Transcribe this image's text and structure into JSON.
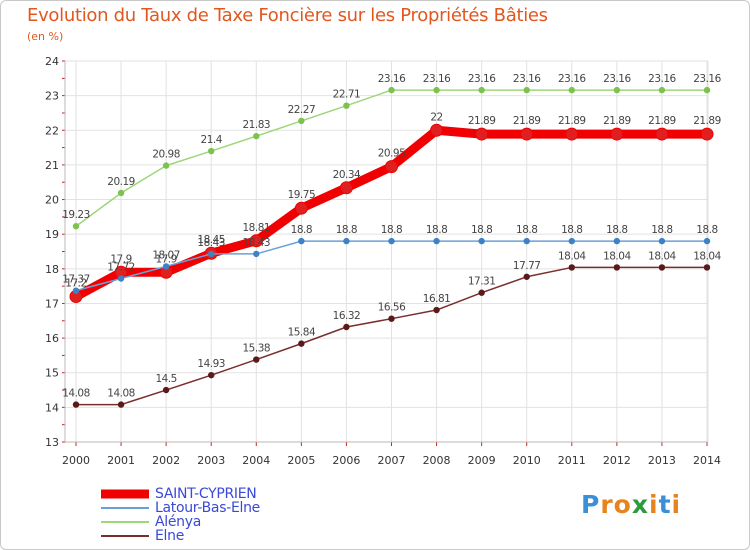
{
  "title": "Evolution du Taux de Taxe Foncière sur les Propriétés Bâties",
  "subtitle": "(en %)",
  "chart_data": {
    "type": "line",
    "title": "Evolution du Taux de Taxe Foncière sur les Propriétés Bâties",
    "ylabel": "(en %)",
    "xlabel": "",
    "ylim": [
      13,
      24
    ],
    "yticks": [
      13,
      14,
      15,
      16,
      17,
      18,
      19,
      20,
      21,
      22,
      23,
      24
    ],
    "categories": [
      "2000",
      "2001",
      "2002",
      "2003",
      "2004",
      "2005",
      "2006",
      "2007",
      "2008",
      "2009",
      "2010",
      "2011",
      "2012",
      "2013",
      "2014"
    ],
    "series": [
      {
        "name": "SAINT-CYPRIEN",
        "color": "#f00000",
        "marker": "#e02020",
        "values": [
          17.2,
          17.9,
          17.9,
          18.45,
          18.81,
          19.75,
          20.34,
          20.95,
          22,
          21.89,
          21.89,
          21.89,
          21.89,
          21.89,
          21.89
        ],
        "labels": [
          "17.2",
          "17.9",
          "17.9",
          "18.45",
          "18.81",
          "19.75",
          "20.34",
          "20.95",
          "22",
          "21.89",
          "21.89",
          "21.89",
          "21.89",
          "21.89",
          "21.89"
        ]
      },
      {
        "name": "Latour-Bas-Elne",
        "color": "#6aa0d8",
        "marker": "#3e82c6",
        "values": [
          17.37,
          17.72,
          18.07,
          18.43,
          18.43,
          18.8,
          18.8,
          18.8,
          18.8,
          18.8,
          18.8,
          18.8,
          18.8,
          18.8,
          18.8
        ],
        "labels": [
          "17.37",
          "17.72",
          "18.07",
          "18.43",
          "18.43",
          "18.8",
          "18.8",
          "18.8",
          "18.8",
          "18.8",
          "18.8",
          "18.8",
          "18.8",
          "18.8",
          "18.8"
        ]
      },
      {
        "name": "Alénya",
        "color": "#9ed67a",
        "marker": "#7cc24e",
        "values": [
          19.23,
          20.19,
          20.98,
          21.4,
          21.83,
          22.27,
          22.71,
          23.16,
          23.16,
          23.16,
          23.16,
          23.16,
          23.16,
          23.16,
          23.16
        ],
        "labels": [
          "19.23",
          "20.19",
          "20.98",
          "21.4",
          "21.83",
          "22.27",
          "22.71",
          "23.16",
          "23.16",
          "23.16",
          "23.16",
          "23.16",
          "23.16",
          "23.16",
          "23.16"
        ]
      },
      {
        "name": "Elne",
        "color": "#7a2e2e",
        "marker": "#5a1a1a",
        "values": [
          14.08,
          14.08,
          14.5,
          14.93,
          15.38,
          15.84,
          16.32,
          16.56,
          16.81,
          17.31,
          17.77,
          18.04,
          18.04,
          18.04,
          18.04
        ],
        "labels": [
          "14.08",
          "14.08",
          "14.5",
          "14.93",
          "15.38",
          "15.84",
          "16.32",
          "16.56",
          "16.81",
          "17.31",
          "17.77",
          "18.04",
          "18.04",
          "18.04",
          "18.04"
        ]
      }
    ]
  },
  "legend": [
    {
      "name": "SAINT-CYPRIEN",
      "color": "#f00000"
    },
    {
      "name": "Latour-Bas-Elne",
      "color": "#6aa0d8"
    },
    {
      "name": "Alénya",
      "color": "#9ed67a"
    },
    {
      "name": "Elne",
      "color": "#7a2e2e"
    }
  ],
  "logo": {
    "letters": [
      "P",
      "r",
      "o",
      "x",
      "i",
      "t",
      "i"
    ],
    "colors": [
      "#3a8fd6",
      "#e8841e",
      "#e8841e",
      "#2e9a3e",
      "#e8841e",
      "#3a8fd6",
      "#e8841e"
    ]
  }
}
